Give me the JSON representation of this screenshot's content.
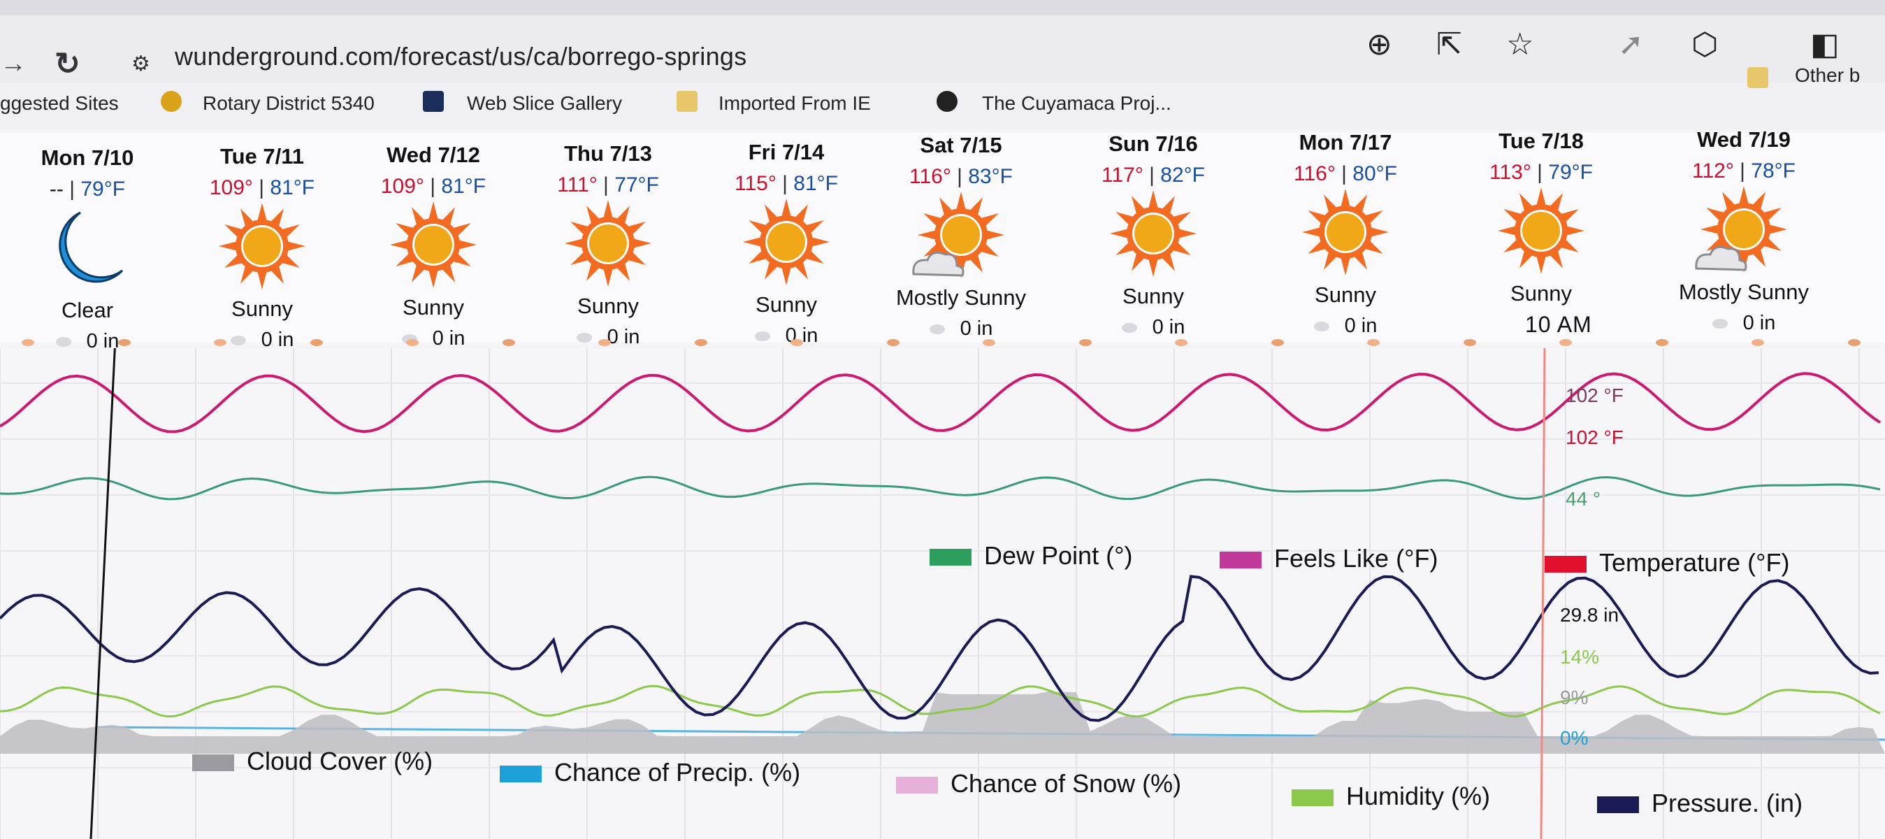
{
  "browser": {
    "url": "wunderground.com/forecast/us/ca/borrego-springs",
    "bookmarks": [
      {
        "label": "ggested Sites",
        "color": ""
      },
      {
        "label": "Rotary District 5340",
        "color": "#d9a21b"
      },
      {
        "label": "Web Slice Gallery",
        "color": "#1b2d5a"
      },
      {
        "label": "Imported From IE",
        "color": "#e8c66a"
      },
      {
        "label": "The Cuyamaca Proj...",
        "color": "#222222"
      }
    ],
    "other_bookmarks": "Other b"
  },
  "days": [
    {
      "label": "Mon 7/10",
      "hi": "--",
      "lo": "79°F",
      "icon": "moon-icon",
      "condition": "Clear",
      "precip": "0 in"
    },
    {
      "label": "Tue 7/11",
      "hi": "109°",
      "lo": "81°F",
      "icon": "sun-icon",
      "condition": "Sunny",
      "precip": "0 in"
    },
    {
      "label": "Wed 7/12",
      "hi": "109°",
      "lo": "81°F",
      "icon": "sun-icon",
      "condition": "Sunny",
      "precip": "0 in"
    },
    {
      "label": "Thu 7/13",
      "hi": "111°",
      "lo": "77°F",
      "icon": "sun-icon",
      "condition": "Sunny",
      "precip": "0 in"
    },
    {
      "label": "Fri 7/14",
      "hi": "115°",
      "lo": "81°F",
      "icon": "sun-icon",
      "condition": "Sunny",
      "precip": "0 in"
    },
    {
      "label": "Sat 7/15",
      "hi": "116°",
      "lo": "83°F",
      "icon": "sun-cloud-icon",
      "condition": "Mostly Sunny",
      "precip": "0 in"
    },
    {
      "label": "Sun 7/16",
      "hi": "117°",
      "lo": "82°F",
      "icon": "sun-icon",
      "condition": "Sunny",
      "precip": "0 in"
    },
    {
      "label": "Mon 7/17",
      "hi": "116°",
      "lo": "80°F",
      "icon": "sun-icon",
      "condition": "Sunny",
      "precip": "0 in"
    },
    {
      "label": "Tue 7/18",
      "hi": "113°",
      "lo": "79°F",
      "icon": "sun-icon",
      "condition": "Sunny",
      "precip": "10 AM"
    },
    {
      "label": "Wed 7/19",
      "hi": "112°",
      "lo": "78°F",
      "icon": "sun-cloud-icon",
      "condition": "Mostly Sunny",
      "precip": "0 in"
    }
  ],
  "cursor_time": "10 AM",
  "readouts": {
    "temperature": "102 °F",
    "feels_like": "102 °F",
    "dew_point": "44 °",
    "pressure": "29.8 in",
    "humidity": "14%",
    "cloud_cover": "9%",
    "precip_chance": "0%"
  },
  "legend_top": [
    {
      "label": "Dew Point (°)",
      "color": "#2e9e5e"
    },
    {
      "label": "Feels Like (°F)",
      "color": "#c0399a"
    },
    {
      "label": "Temperature (°F)",
      "color": "#e0102e"
    }
  ],
  "legend_bottom": [
    {
      "label": "Cloud Cover (%)",
      "color": "#9a9aa0"
    },
    {
      "label": "Chance of Precip. (%)",
      "color": "#1ea0d8"
    },
    {
      "label": "Chance of Snow (%)",
      "color": "#e6b0d8"
    },
    {
      "label": "Humidity (%)",
      "color": "#8cc84b"
    },
    {
      "label": "Pressure. (in)",
      "color": "#1a1a55"
    }
  ]
}
